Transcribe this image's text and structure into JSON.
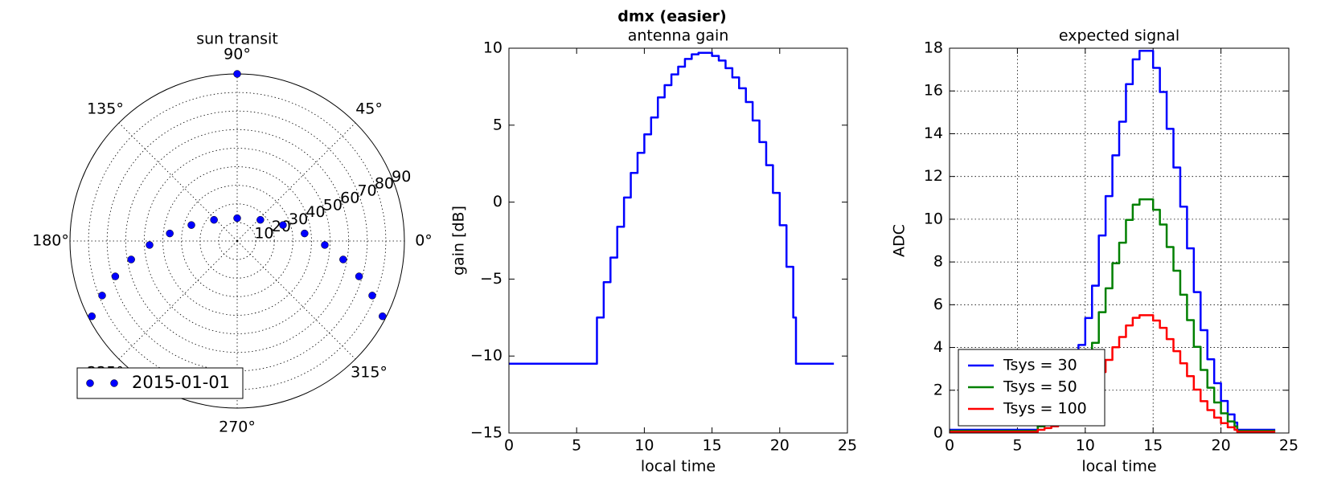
{
  "title": "dmx (easier)",
  "chart_data": [
    {
      "type": "polar",
      "title": "sun transit",
      "rlim": [
        0,
        90
      ],
      "rticks": [
        10,
        20,
        30,
        40,
        50,
        60,
        70,
        80,
        90
      ],
      "thetaticks": [
        {
          "value": 0,
          "label": "0°"
        },
        {
          "value": 45,
          "label": "45°"
        },
        {
          "value": 90,
          "label": "90°"
        },
        {
          "value": 135,
          "label": "135°"
        },
        {
          "value": 180,
          "label": "180°"
        },
        {
          "value": 225,
          "label": "225°"
        },
        {
          "value": 270,
          "label": "270°"
        },
        {
          "value": 315,
          "label": "315°"
        }
      ],
      "grid": true,
      "legend": "lower left",
      "series": [
        {
          "name": "2015-01-01",
          "color": "#0000ff",
          "theta": [
            90,
            207.4,
            202.0,
            196.2,
            189.9,
            182.6,
            173.6,
            160.8,
            137.6,
            90,
            42.4,
            19.2,
            6.4,
            -2.6,
            -9.9,
            -16.2,
            -22.0,
            -27.4
          ],
          "r": [
            90,
            88.1,
            78.4,
            68.3,
            57.9,
            47.2,
            36.5,
            26.1,
            16.9,
            12.3,
            16.9,
            26.1,
            36.5,
            47.2,
            57.9,
            68.3,
            78.4,
            88.1
          ]
        }
      ]
    },
    {
      "type": "line",
      "title": "antenna gain",
      "xlabel": "local time",
      "ylabel": "gain [dB]",
      "xlim": [
        0,
        25
      ],
      "ylim": [
        -15,
        10
      ],
      "xticks": [
        0,
        5,
        10,
        15,
        20,
        25
      ],
      "yticks": [
        {
          "value": -15,
          "label": "−15"
        },
        {
          "value": -10,
          "label": "−10"
        },
        {
          "value": -5,
          "label": "−5"
        },
        0,
        5,
        10
      ],
      "grid": false,
      "x": [
        0,
        6.5,
        6.5,
        7,
        7,
        7.5,
        7.5,
        8,
        8,
        8.5,
        8.5,
        9,
        9,
        9.5,
        9.5,
        10,
        10,
        10.5,
        10.5,
        11,
        11,
        11.5,
        11.5,
        12,
        12,
        12.5,
        12.5,
        13,
        13,
        13.5,
        13.5,
        14,
        14,
        15,
        15,
        15.5,
        15.5,
        16,
        16,
        16.5,
        16.5,
        17,
        17,
        17.5,
        17.5,
        18,
        18,
        18.5,
        18.5,
        19,
        19,
        19.5,
        19.5,
        20,
        20,
        20.5,
        20.5,
        21,
        21,
        21.2,
        21.2,
        24
      ],
      "series": [
        {
          "color": "#0000ff",
          "values": [
            -10.5,
            -10.5,
            -7.5,
            -7.5,
            -5.2,
            -5.2,
            -3.6,
            -3.6,
            -1.6,
            -1.6,
            0.3,
            0.3,
            1.9,
            1.9,
            3.2,
            3.2,
            4.4,
            4.4,
            5.5,
            5.5,
            6.8,
            6.8,
            7.6,
            7.6,
            8.3,
            8.3,
            8.8,
            8.8,
            9.3,
            9.3,
            9.6,
            9.6,
            9.7,
            9.7,
            9.5,
            9.5,
            9.2,
            9.2,
            8.7,
            8.7,
            8.1,
            8.1,
            7.4,
            7.4,
            6.5,
            6.5,
            5.3,
            5.3,
            3.9,
            3.9,
            2.4,
            2.4,
            0.6,
            0.6,
            -1.5,
            -1.5,
            -4.2,
            -4.2,
            -7.5,
            -7.5,
            -10.5,
            -10.5
          ]
        }
      ]
    },
    {
      "type": "line",
      "title": "expected signal",
      "xlabel": "local time",
      "ylabel": "ADC",
      "xlim": [
        0,
        25
      ],
      "ylim": [
        0,
        18
      ],
      "xticks": [
        0,
        5,
        10,
        15,
        20,
        25
      ],
      "yticks": [
        0,
        2,
        4,
        6,
        8,
        10,
        12,
        14,
        16,
        18
      ],
      "grid": true,
      "legend": "lower left",
      "x": [
        0,
        6.5,
        6.5,
        7,
        7,
        7.5,
        7.5,
        8,
        8,
        8.5,
        8.5,
        9,
        9,
        9.5,
        9.5,
        10,
        10,
        10.5,
        10.5,
        11,
        11,
        11.5,
        11.5,
        12,
        12,
        12.5,
        12.5,
        13,
        13,
        13.5,
        13.5,
        14,
        14,
        15,
        15,
        15.5,
        15.5,
        16,
        16,
        16.5,
        16.5,
        17,
        17,
        17.5,
        17.5,
        18,
        18,
        18.5,
        18.5,
        19,
        19,
        19.5,
        19.5,
        20,
        20,
        20.5,
        20.5,
        21,
        21,
        21.2,
        21.2,
        24
      ],
      "series": [
        {
          "name": "Tsys = 30",
          "color": "#0000ff",
          "values": [
            0.15,
            0.15,
            0.49,
            0.49,
            0.72,
            0.72,
            0.98,
            0.98,
            1.46,
            1.46,
            2.19,
            2.19,
            3.09,
            3.09,
            4.12,
            4.12,
            5.38,
            5.38,
            6.89,
            6.89,
            9.24,
            9.24,
            11.08,
            11.08,
            12.99,
            12.99,
            14.56,
            14.56,
            16.32,
            16.32,
            17.48,
            17.48,
            17.88,
            17.88,
            17.08,
            17.08,
            15.95,
            15.95,
            14.23,
            14.23,
            12.42,
            12.42,
            10.59,
            10.59,
            8.64,
            8.64,
            6.59,
            6.59,
            4.81,
            4.81,
            3.45,
            3.45,
            2.33,
            2.33,
            1.5,
            1.5,
            0.87,
            0.87,
            0.49,
            0.49,
            0.15,
            0.15
          ]
        },
        {
          "name": "Tsys = 50",
          "color": "#008000",
          "values": [
            0.1,
            0.1,
            0.31,
            0.31,
            0.45,
            0.45,
            0.61,
            0.61,
            0.9,
            0.9,
            1.34,
            1.34,
            1.9,
            1.9,
            2.52,
            2.52,
            3.29,
            3.29,
            4.22,
            4.22,
            5.65,
            5.65,
            6.77,
            6.77,
            7.94,
            7.94,
            8.9,
            8.9,
            9.97,
            9.97,
            10.68,
            10.68,
            10.93,
            10.93,
            10.44,
            10.44,
            9.75,
            9.75,
            8.7,
            8.7,
            7.59,
            7.59,
            6.47,
            6.47,
            5.28,
            5.28,
            4.03,
            4.03,
            2.95,
            2.95,
            2.12,
            2.12,
            1.43,
            1.43,
            0.92,
            0.92,
            0.54,
            0.54,
            0.31,
            0.31,
            0.1,
            0.1
          ]
        },
        {
          "name": "Tsys = 100",
          "color": "#ff0000",
          "values": [
            0.05,
            0.05,
            0.15,
            0.15,
            0.23,
            0.23,
            0.31,
            0.31,
            0.45,
            0.45,
            0.68,
            0.68,
            0.96,
            0.96,
            1.27,
            1.27,
            1.66,
            1.66,
            2.13,
            2.13,
            2.85,
            2.85,
            3.42,
            3.42,
            4.01,
            4.01,
            4.49,
            4.49,
            5.03,
            5.03,
            5.39,
            5.39,
            5.51,
            5.51,
            5.26,
            5.26,
            4.92,
            4.92,
            4.39,
            4.39,
            3.83,
            3.83,
            3.26,
            3.26,
            2.66,
            2.66,
            2.03,
            2.03,
            1.49,
            1.49,
            1.07,
            1.07,
            0.72,
            0.72,
            0.46,
            0.46,
            0.27,
            0.27,
            0.15,
            0.15,
            0.05,
            0.05
          ]
        }
      ]
    }
  ]
}
